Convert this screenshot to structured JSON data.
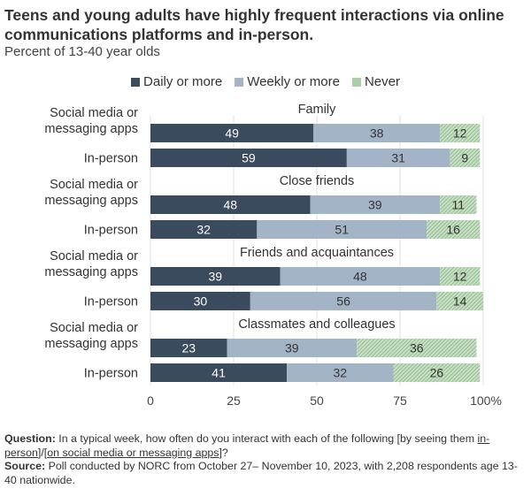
{
  "header": {
    "title": "Teens and young adults have highly frequent interactions via online communications platforms and in-person.",
    "subtitle": "Percent of 13-40 year olds"
  },
  "legend": {
    "items": [
      {
        "label": "Daily or more",
        "color": "#3b4b5e"
      },
      {
        "label": "Weekly or more",
        "color": "#a3b4c6"
      },
      {
        "label": "Never",
        "color": "#a9cfa6"
      }
    ]
  },
  "chart_data": {
    "type": "bar",
    "orientation": "horizontal",
    "stacked": true,
    "groups": [
      {
        "title": "Family",
        "rows": [
          {
            "label_lines": [
              "Social media or",
              "messaging apps"
            ],
            "values": [
              49,
              38,
              12
            ]
          },
          {
            "label_lines": [
              "In-person"
            ],
            "values": [
              59,
              31,
              9
            ]
          }
        ]
      },
      {
        "title": "Close friends",
        "rows": [
          {
            "label_lines": [
              "Social media or",
              "messaging apps"
            ],
            "values": [
              48,
              39,
              11
            ]
          },
          {
            "label_lines": [
              "In-person"
            ],
            "values": [
              32,
              51,
              16
            ]
          }
        ]
      },
      {
        "title": "Friends and acquaintances",
        "rows": [
          {
            "label_lines": [
              "Social media or",
              "messaging apps"
            ],
            "values": [
              39,
              48,
              12
            ]
          },
          {
            "label_lines": [
              "In-person"
            ],
            "values": [
              30,
              56,
              14
            ]
          }
        ]
      },
      {
        "title": "Classmates and colleagues",
        "rows": [
          {
            "label_lines": [
              "Social media or",
              "messaging apps"
            ],
            "values": [
              23,
              39,
              36
            ]
          },
          {
            "label_lines": [
              "In-person"
            ],
            "values": [
              41,
              32,
              26
            ]
          }
        ]
      }
    ],
    "series": [
      "Daily or more",
      "Weekly or more",
      "Never"
    ],
    "xlim": [
      0,
      100
    ],
    "ticks": [
      "0",
      "25",
      "50",
      "75",
      "100%"
    ],
    "tick_values": [
      0,
      25,
      50,
      75,
      100
    ]
  },
  "footer": {
    "question_label": "Question:",
    "question_text": "In a typical week, how often do you interact with each of the following [by seeing them",
    "question_option_1": "in-person",
    "question_sep": "]/[",
    "question_option_2": "on social media or messaging apps",
    "question_end": "]?",
    "source_label": "Source:",
    "source_text": "Poll conducted by NORC from October 27– November 10, 2023, with 2,208 respondents age 13-40 nationwide."
  }
}
